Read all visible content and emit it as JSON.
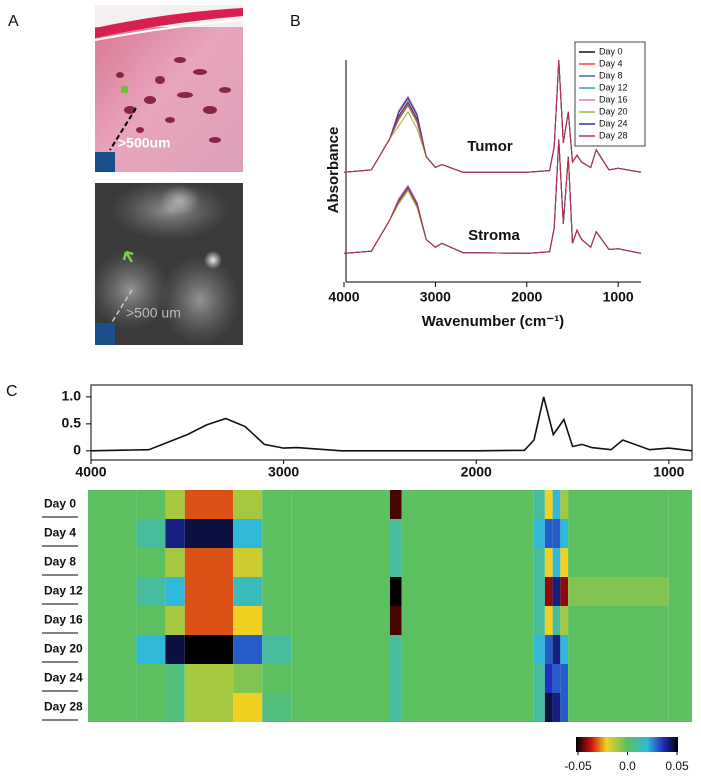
{
  "panel_labels": [
    "A",
    "B",
    "C"
  ],
  "panel_a": {
    "top_image_label": ">500um",
    "bottom_image_label": ">500 um"
  },
  "chart_data": [
    {
      "type": "line",
      "xlabel": "Wavenumber (cm⁻¹)",
      "ylabel": "Absorbance",
      "annotations": [
        "Tumor",
        "Stroma"
      ],
      "xlim": [
        4000,
        750
      ],
      "xticks": [
        4000,
        3000,
        2000,
        1000
      ],
      "ylim": [
        0,
        3
      ],
      "legend": "upper right",
      "x": [
        4000,
        3700,
        3500,
        3400,
        3300,
        3200,
        3100,
        3000,
        2930,
        2700,
        2000,
        1750,
        1700,
        1650,
        1600,
        1545,
        1500,
        1450,
        1400,
        1300,
        1240,
        1100,
        1000,
        750
      ],
      "series": [
        {
          "name": "Day 0",
          "color": "#111111",
          "tumor_values": [
            1.42,
            1.45,
            1.85,
            2.15,
            2.33,
            2.11,
            1.62,
            1.48,
            1.52,
            1.42,
            1.42,
            1.44,
            1.75,
            2.87,
            1.8,
            2.2,
            1.55,
            1.64,
            1.55,
            1.48,
            1.71,
            1.45,
            1.47,
            1.42
          ],
          "stroma_values": [
            0.37,
            0.4,
            0.8,
            1.05,
            1.22,
            1.0,
            0.55,
            0.45,
            0.5,
            0.38,
            0.37,
            0.39,
            0.7,
            1.84,
            0.75,
            1.62,
            0.5,
            0.67,
            0.55,
            0.45,
            0.65,
            0.42,
            0.43,
            0.37
          ]
        },
        {
          "name": "Day 4",
          "color": "#e8453c",
          "tumor_values": [
            1.42,
            1.45,
            1.85,
            2.1,
            2.28,
            2.06,
            1.62,
            1.48,
            1.52,
            1.42,
            1.42,
            1.44,
            1.75,
            2.87,
            1.8,
            2.2,
            1.55,
            1.64,
            1.55,
            1.48,
            1.71,
            1.45,
            1.47,
            1.42
          ],
          "stroma_values": [
            0.37,
            0.4,
            0.8,
            1.03,
            1.2,
            0.98,
            0.55,
            0.45,
            0.5,
            0.38,
            0.37,
            0.39,
            0.7,
            1.84,
            0.75,
            1.62,
            0.5,
            0.67,
            0.55,
            0.45,
            0.65,
            0.42,
            0.43,
            0.37
          ]
        },
        {
          "name": "Day 8",
          "color": "#3a6fb0",
          "tumor_values": [
            1.42,
            1.45,
            1.85,
            2.19,
            2.37,
            2.15,
            1.62,
            1.48,
            1.52,
            1.42,
            1.42,
            1.44,
            1.75,
            2.87,
            1.8,
            2.2,
            1.55,
            1.64,
            1.55,
            1.48,
            1.71,
            1.45,
            1.47,
            1.42
          ],
          "stroma_values": [
            0.37,
            0.4,
            0.8,
            1.07,
            1.24,
            1.02,
            0.55,
            0.45,
            0.5,
            0.38,
            0.37,
            0.39,
            0.7,
            1.84,
            0.75,
            1.62,
            0.5,
            0.67,
            0.55,
            0.45,
            0.65,
            0.42,
            0.43,
            0.37
          ]
        },
        {
          "name": "Day 12",
          "color": "#2aa6b5",
          "tumor_values": [
            1.42,
            1.45,
            1.85,
            2.12,
            2.3,
            2.08,
            1.62,
            1.48,
            1.52,
            1.42,
            1.42,
            1.44,
            1.75,
            2.87,
            1.8,
            2.2,
            1.55,
            1.64,
            1.55,
            1.48,
            1.71,
            1.45,
            1.47,
            1.42
          ],
          "stroma_values": [
            0.37,
            0.4,
            0.8,
            1.04,
            1.21,
            0.99,
            0.55,
            0.45,
            0.5,
            0.38,
            0.37,
            0.39,
            0.7,
            1.84,
            0.75,
            1.62,
            0.5,
            0.67,
            0.55,
            0.45,
            0.65,
            0.42,
            0.43,
            0.37
          ]
        },
        {
          "name": "Day 16",
          "color": "#d87fc0",
          "tumor_values": [
            1.42,
            1.45,
            1.85,
            2.22,
            2.4,
            2.18,
            1.62,
            1.48,
            1.52,
            1.42,
            1.42,
            1.44,
            1.75,
            2.87,
            1.8,
            2.2,
            1.55,
            1.64,
            1.55,
            1.48,
            1.71,
            1.45,
            1.47,
            1.42
          ],
          "stroma_values": [
            0.37,
            0.4,
            0.8,
            1.08,
            1.25,
            1.03,
            0.55,
            0.45,
            0.5,
            0.38,
            0.37,
            0.39,
            0.7,
            1.84,
            0.75,
            1.62,
            0.5,
            0.67,
            0.55,
            0.45,
            0.65,
            0.42,
            0.43,
            0.37
          ]
        },
        {
          "name": "Day 20",
          "color": "#9bb53a",
          "tumor_values": [
            1.42,
            1.45,
            1.85,
            2.02,
            2.2,
            1.98,
            1.62,
            1.48,
            1.52,
            1.42,
            1.42,
            1.44,
            1.75,
            2.87,
            1.8,
            2.2,
            1.55,
            1.64,
            1.55,
            1.48,
            1.71,
            1.45,
            1.47,
            1.42
          ],
          "stroma_values": [
            0.37,
            0.4,
            0.8,
            1.01,
            1.18,
            0.96,
            0.55,
            0.45,
            0.5,
            0.38,
            0.37,
            0.39,
            0.7,
            1.84,
            0.75,
            1.62,
            0.5,
            0.67,
            0.55,
            0.45,
            0.65,
            0.42,
            0.43,
            0.37
          ]
        },
        {
          "name": "Day 24",
          "color": "#2b3a9e",
          "tumor_values": [
            1.42,
            1.45,
            1.85,
            2.2,
            2.38,
            2.16,
            1.62,
            1.48,
            1.52,
            1.42,
            1.42,
            1.44,
            1.75,
            2.87,
            1.8,
            2.2,
            1.55,
            1.64,
            1.55,
            1.48,
            1.71,
            1.45,
            1.47,
            1.42
          ],
          "stroma_values": [
            0.37,
            0.4,
            0.8,
            1.06,
            1.23,
            1.01,
            0.55,
            0.45,
            0.5,
            0.38,
            0.37,
            0.39,
            0.7,
            1.84,
            0.75,
            1.62,
            0.5,
            0.67,
            0.55,
            0.45,
            0.65,
            0.42,
            0.43,
            0.37
          ]
        },
        {
          "name": "Day 28",
          "color": "#b8304a",
          "tumor_values": [
            1.42,
            1.45,
            1.85,
            2.14,
            2.32,
            2.1,
            1.62,
            1.48,
            1.52,
            1.42,
            1.42,
            1.44,
            1.75,
            2.87,
            1.8,
            2.2,
            1.55,
            1.64,
            1.55,
            1.48,
            1.71,
            1.45,
            1.47,
            1.42
          ],
          "stroma_values": [
            0.37,
            0.4,
            0.8,
            1.05,
            1.22,
            1.0,
            0.55,
            0.45,
            0.5,
            0.38,
            0.37,
            0.39,
            0.7,
            1.84,
            0.75,
            1.62,
            0.5,
            0.67,
            0.55,
            0.45,
            0.65,
            0.42,
            0.43,
            0.37
          ]
        }
      ]
    },
    {
      "type": "line",
      "xlim": [
        4000,
        880
      ],
      "xticks": [
        4000,
        3000,
        2000,
        1000
      ],
      "ylim": [
        -0.17,
        1.22
      ],
      "yticks": [
        0,
        0.5,
        {
          "value": 1,
          "label": "1.0"
        }
      ],
      "color": "#111111",
      "x": [
        4000,
        3700,
        3500,
        3400,
        3300,
        3200,
        3100,
        3000,
        2930,
        2700,
        2000,
        1750,
        1700,
        1650,
        1600,
        1545,
        1500,
        1450,
        1400,
        1300,
        1240,
        1100,
        1000,
        880
      ],
      "values": [
        0,
        0.02,
        0.3,
        0.48,
        0.6,
        0.45,
        0.12,
        0.05,
        0.06,
        0,
        0,
        0.01,
        0.2,
        1.0,
        0.3,
        0.58,
        0.08,
        0.12,
        0.06,
        0.02,
        0.2,
        0.02,
        0.05,
        0
      ]
    },
    {
      "type": "heatmap",
      "xlim": [
        4000,
        880
      ],
      "categories": [
        "Day 0",
        "Day 4",
        "Day 8",
        "Day 12",
        "Day 16",
        "Day 20",
        "Day 24",
        "Day 28"
      ],
      "bins": [
        4000,
        3750,
        3600,
        3500,
        3250,
        3100,
        2950,
        2440,
        2380,
        1700,
        1640,
        1600,
        1560,
        1520,
        1000,
        880
      ],
      "values": [
        [
          0,
          0,
          -0.01,
          -0.03,
          -0.01,
          0,
          0,
          -0.045,
          0,
          0.01,
          -0.02,
          0.02,
          -0.01,
          0,
          0
        ],
        [
          0,
          0.01,
          0.04,
          0.045,
          0.02,
          0,
          0,
          0.01,
          0,
          0.02,
          0.03,
          0.03,
          0.02,
          0,
          0
        ],
        [
          0,
          0,
          -0.01,
          -0.03,
          -0.015,
          0,
          0,
          0.01,
          0,
          0.01,
          -0.02,
          0.02,
          -0.02,
          0,
          0
        ],
        [
          0,
          0.01,
          0.02,
          -0.03,
          0.015,
          0,
          0,
          0.05,
          0,
          0.01,
          -0.04,
          0.04,
          -0.04,
          -0.005,
          0
        ],
        [
          0,
          0,
          -0.01,
          -0.03,
          -0.02,
          0,
          0,
          -0.045,
          0,
          0.01,
          -0.02,
          0.01,
          -0.01,
          0,
          0
        ],
        [
          0,
          0.02,
          0.045,
          0.05,
          0.03,
          0.01,
          0,
          0.01,
          0,
          0.02,
          0.03,
          0.04,
          0.02,
          0,
          0
        ],
        [
          0,
          0,
          0.005,
          -0.01,
          -0.005,
          0,
          0,
          0.01,
          0,
          0.01,
          0.035,
          0.03,
          0.03,
          0,
          0
        ],
        [
          0,
          0,
          0.005,
          -0.01,
          -0.02,
          0.005,
          0,
          0.01,
          0,
          0.01,
          0.045,
          0.04,
          0.03,
          0,
          0
        ]
      ],
      "clim": [
        -0.05,
        0.05
      ],
      "cticks": [
        -0.05,
        {
          "value": 0,
          "label": "0.0"
        },
        0.05
      ]
    }
  ]
}
